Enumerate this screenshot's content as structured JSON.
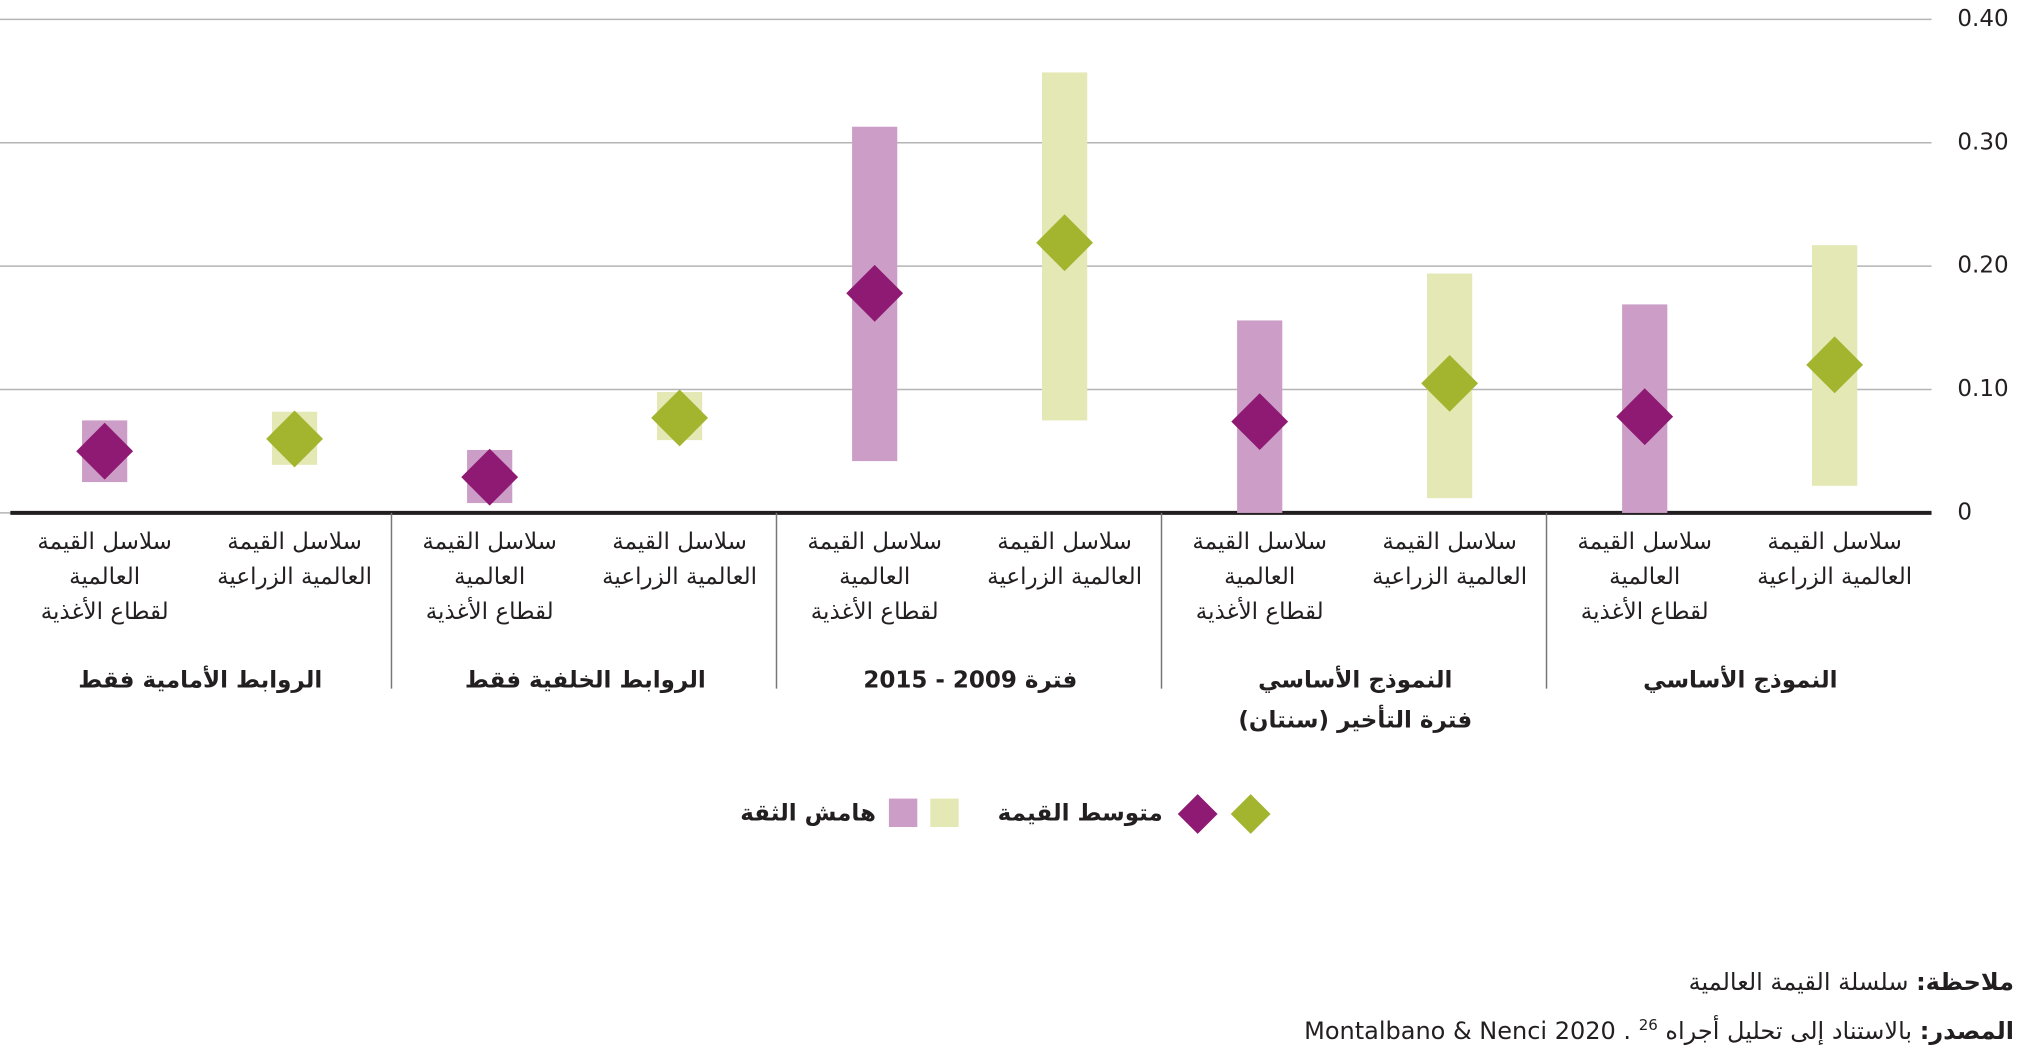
{
  "chart_data": {
    "type": "range",
    "groups": [
      [
        "النموذج الأساسي"
      ],
      [
        "النموذج الأساسي",
        "فترة التأخير (سنتان)"
      ],
      [
        "فترة 2009 - 2015"
      ],
      [
        "الروابط الخلفية فقط"
      ],
      [
        "الروابط الأمامية فقط"
      ]
    ],
    "series": [
      {
        "label_lines": [
          "سلاسل القيمة",
          "العالمية الزراعية"
        ],
        "color": "#a3b52f",
        "band_color": "#e4e8b4",
        "mean": [
          0.12,
          0.105,
          0.219,
          0.077,
          0.06
        ],
        "low": [
          0.022,
          0.012,
          0.075,
          0.059,
          0.039
        ],
        "high": [
          0.217,
          0.194,
          0.357,
          0.098,
          0.082
        ]
      },
      {
        "label_lines": [
          "سلاسل القيمة",
          "العالمية",
          "لقطاع الأغذية"
        ],
        "color": "#8e1a73",
        "band_color": "#cc9ec7",
        "mean": [
          0.078,
          0.074,
          0.178,
          0.029,
          0.05
        ],
        "low": [
          0,
          0,
          0.042,
          0.008,
          0.025
        ],
        "high": [
          0.169,
          0.156,
          0.313,
          0.051,
          0.075
        ]
      }
    ],
    "ylim": [
      0,
      0.4
    ],
    "yticks": [
      0,
      {
        "value": 0.1,
        "label": "0.10"
      },
      {
        "value": 0.2,
        "label": "0.20"
      },
      {
        "value": 0.3,
        "label": "0.30"
      },
      {
        "value": 0.4,
        "label": "0.40"
      }
    ],
    "grid": true,
    "legend": {
      "mean": "متوسط القيمة",
      "interval": "هامش الثقة"
    }
  },
  "note": {
    "label": "ملاحظة:",
    "text": "سلسلة القيمة العالمية"
  },
  "source": {
    "label": "المصدر:",
    "text": "بالاستناد إلى تحليل أجراه Montalbano & Nenci 2020 .",
    "ref": "26"
  }
}
